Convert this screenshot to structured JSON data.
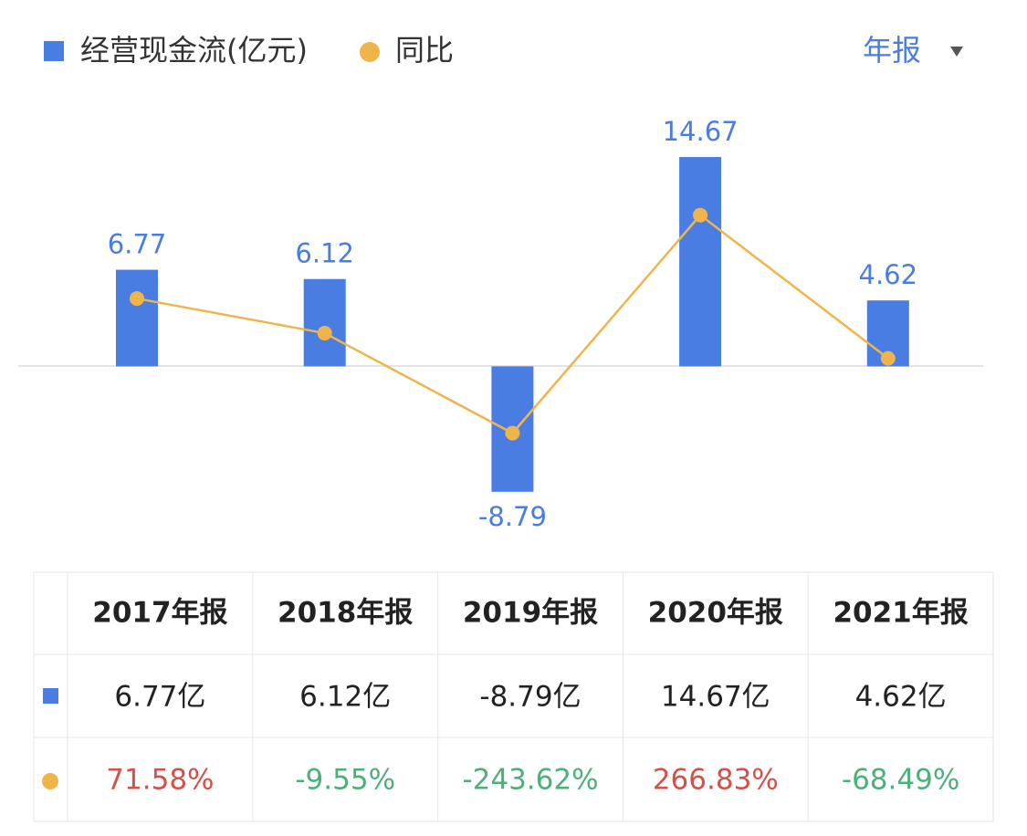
{
  "chart_data": {
    "type": "bar",
    "categories": [
      "2017年报",
      "2018年报",
      "2019年报",
      "2020年报",
      "2021年报"
    ],
    "series": [
      {
        "name": "经营现金流(亿元)",
        "type": "bar",
        "color": "#4a7de2",
        "values": [
          6.77,
          6.12,
          -8.79,
          14.67,
          4.62
        ],
        "value_labels": [
          "6.77亿",
          "6.12亿",
          "-8.79亿",
          "14.67亿",
          "4.62亿"
        ]
      },
      {
        "name": "同比",
        "type": "line",
        "axis": "y2",
        "color": "#f0b54a",
        "values": [
          71.58,
          -9.55,
          -243.62,
          266.83,
          -68.49
        ],
        "value_labels": [
          "71.58%",
          "-9.55%",
          "-243.62%",
          "266.83%",
          "-68.49%"
        ]
      }
    ],
    "ylim": [
      -12,
      18
    ],
    "y2lim": [
      -488,
      514
    ],
    "positive_color": "#d6504a",
    "negative_color": "#4cb07a"
  },
  "period_selector": "年报"
}
